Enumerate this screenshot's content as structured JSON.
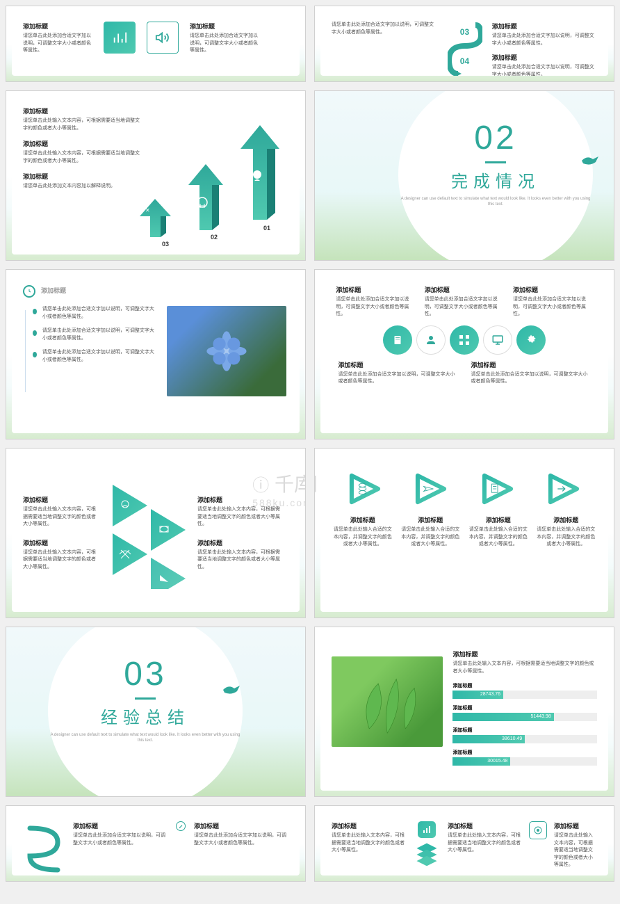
{
  "common": {
    "title_label": "添加标题",
    "body_long": "请您单击此处添加合适文字加以说明，可调整文字大小或者颜色等属性。",
    "body_short": "请您单击此处输入文本内容，可根据需要适当地调整文字的颜色或者大小等属性。",
    "body_explain": "请您单击此处添加文本内容加以解释说明。",
    "body_triangle": "请您单击此处输入文本内容，可根据需要适当地调整文字的颜色或者大小等属性。",
    "body_play": "请您单击此处输入合适的文本内容，并调整文字的颜色或者大小等属性。"
  },
  "colors": {
    "teal1": "#2fb8a8",
    "teal2": "#4fc9b0",
    "text_dark": "#222222",
    "text_body": "#555555",
    "bg": "#ffffff",
    "border": "#d0d0d0"
  },
  "watermark": {
    "logo": "千库网",
    "sub": "588ku.com"
  },
  "slide2": {
    "nums": [
      "03",
      "04"
    ]
  },
  "slide3": {
    "nums": [
      "01",
      "02",
      "03"
    ]
  },
  "section02": {
    "num": "02",
    "title": "完成情况",
    "sub": "A designer can use default text to simulate what text would look like. It looks even better with you using this text."
  },
  "section03": {
    "num": "03",
    "title": "经验总结",
    "sub": "A designer can use default text to simulate what text would look like. It looks even better with you using this text."
  },
  "slide10": {
    "bars": [
      {
        "label": "添加标题",
        "value": 28743.76,
        "pct": 35
      },
      {
        "label": "添加标题",
        "value": 51443.98,
        "pct": 70
      },
      {
        "label": "添加标题",
        "value": 38610.49,
        "pct": 50
      },
      {
        "label": "添加标题",
        "value": 30015.48,
        "pct": 40
      }
    ]
  }
}
